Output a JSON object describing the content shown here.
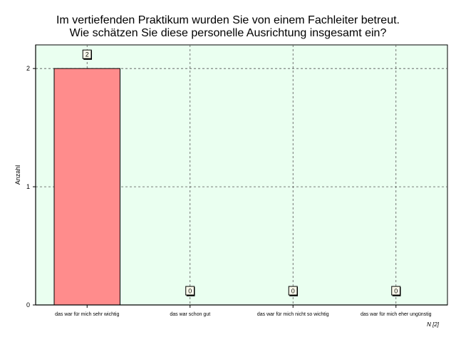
{
  "chart_data": {
    "type": "bar",
    "title_lines": [
      "Im vertiefenden Praktikum wurden Sie von einem Fachleiter betreut.",
      "Wie schätzen Sie diese personelle Ausrichtung insgesamt ein?"
    ],
    "ylabel": "Anzahl",
    "categories": [
      "das war für mich sehr wichtig",
      "das war schon gut",
      "das war für mich nicht so wichtig",
      "das war für mich eher ungünstig"
    ],
    "values": [
      2,
      0,
      0,
      0
    ],
    "data_labels": [
      "2",
      "0",
      "0",
      "0"
    ],
    "yticks": [
      "0",
      "1",
      "2"
    ],
    "ylim": [
      0,
      2.2
    ],
    "grid": true,
    "footnote": "N [2]",
    "colors": {
      "bar_fill": "#ff8c8c",
      "plot_background": "#eafff0",
      "grid": "#555555"
    }
  }
}
